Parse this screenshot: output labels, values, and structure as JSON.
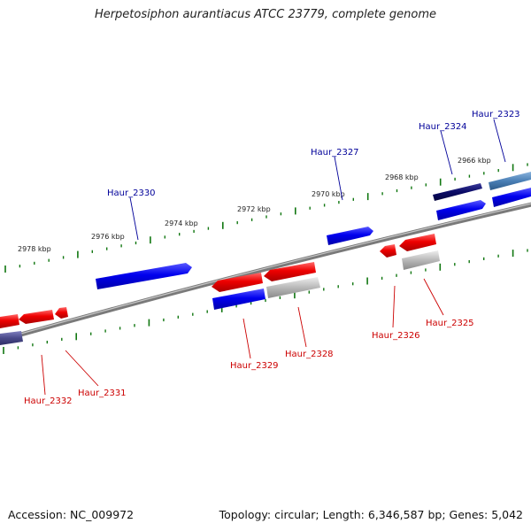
{
  "title": "Herpetosiphon aurantiacus ATCC 23779, complete genome",
  "footer": {
    "accession": "Accession: NC_009972",
    "summary": "Topology: circular; Length: 6,346,587 bp; Genes: 5,042"
  },
  "ticks": [
    "2966 kbp",
    "2968 kbp",
    "2970 kbp",
    "2972 kbp",
    "2974 kbp",
    "2976 kbp",
    "2978 kbp"
  ],
  "genes_forward": [
    "Haur_2323",
    "Haur_2324",
    "Haur_2327",
    "Haur_2330"
  ],
  "genes_reverse": [
    "Haur_2325",
    "Haur_2326",
    "Haur_2328",
    "Haur_2329",
    "Haur_2331",
    "Haur_2332"
  ],
  "colors": {
    "forward_label": "#000099",
    "reverse_label": "#cc0000",
    "forward_gene": "#0000ee",
    "reverse_gene": "#ee0000",
    "backbone": "#888888",
    "tick": "#117711"
  }
}
